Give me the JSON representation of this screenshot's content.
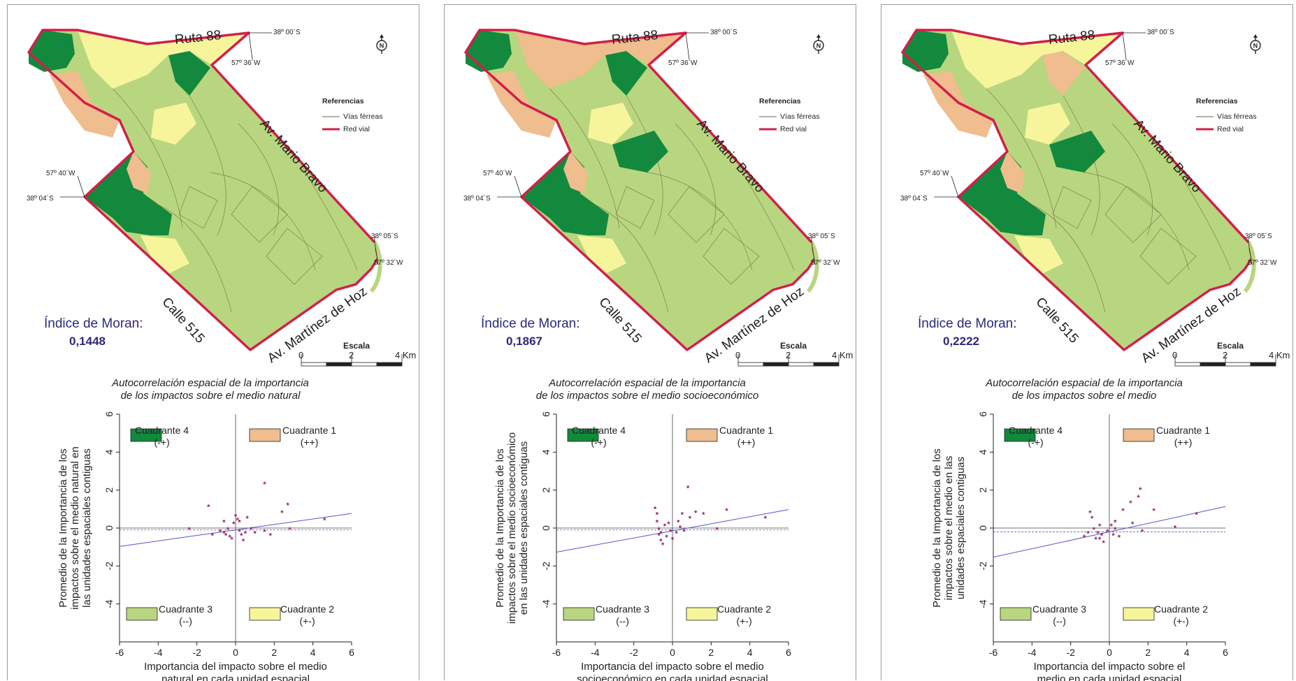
{
  "colors": {
    "q1": "#efbd8e",
    "q2": "#f7f59c",
    "q3": "#b8d67f",
    "q4": "#12893d",
    "boundary": "#d0204a",
    "railway": "#6b6240",
    "moran_text": "#2b2a7a",
    "points": "#8e2060",
    "regression": "#5757c8"
  },
  "common": {
    "refs_title": "Referencias",
    "rail_label": "Vías férreas",
    "road_label": "Red vial",
    "road_ruta": "Ruta 88",
    "road_bravo": "Av. Mario Bravo",
    "road_calle": "Calle 515",
    "road_hoz": "Av. Martínez de Hoz",
    "coord_lat1": "38º 00´S",
    "coord_lon1": "57º 36´W",
    "coord_lon2": "57º 40´W",
    "coord_lat2": "38º 04´S",
    "coord_lat3": "38º 05´S",
    "coord_lon3": "57º 32´W",
    "north_icon": "north-arrow",
    "scale_title": "Escala",
    "scale_0": "0",
    "scale_2": "2",
    "scale_4": "4 Km",
    "moran_label": "Índice de Moran:",
    "q4_name": "Cuadrante 4",
    "q4_sign": "(-+)",
    "q1_name": "Cuadrante 1",
    "q1_sign": "(++)",
    "q3_name": "Cuadrante 3",
    "q3_sign": "(--)",
    "q2_name": "Cuadrante 2",
    "q2_sign": "(+-)"
  },
  "panels": [
    {
      "moran_value": "0,1448",
      "chart_title_1": "Autocorrelación espacial de la importancia",
      "chart_title_2": "de los impactos sobre el medio natural",
      "ylabel_1": "Promedio de la Importancia de los",
      "ylabel_2": "impactos sobre el medio natural en",
      "ylabel_3": "las unidades espaciales contiguas",
      "xlabel_1": "Importancia del impacto sobre el medio",
      "xlabel_2": "natural en cada unidad espacial"
    },
    {
      "moran_value": "0,1867",
      "chart_title_1": "Autocorrelación espacial de la importancia",
      "chart_title_2": "de los impactos sobre el medio socioeconómico",
      "ylabel_1": "Promedio de la Importancia de los",
      "ylabel_2": "impactos sobre el medio socioeconómico",
      "ylabel_3": "en las unidades espaciales contiguas",
      "xlabel_1": "Importancia del impacto sobre el medio",
      "xlabel_2": "socioeconómico en cada unidad espacial"
    },
    {
      "moran_value": "0,2222",
      "chart_title_1": "Autocorrelación espacial de la importancia",
      "chart_title_2": "de los impactos sobre el medio",
      "ylabel_1": "Promedio de la Importancia de los",
      "ylabel_2": "impactos sobre el medio en las",
      "ylabel_3": "unidades espaciales contiguas",
      "xlabel_1": "Importancia del impacto sobre el",
      "xlabel_2": "medio en cada unidad espacial"
    }
  ],
  "chart_data": [
    {
      "type": "scatter",
      "title": "Autocorrelación espacial de la importancia de los impactos sobre el medio natural",
      "xlabel": "Importancia del impacto sobre el medio natural en cada unidad espacial",
      "ylabel": "Promedio de la Importancia de los impactos sobre el medio natural en las unidades espaciales contiguas",
      "xlim": [
        -6,
        6
      ],
      "ylim": [
        -6,
        6
      ],
      "xticks": [
        -6,
        -4,
        -2,
        0,
        2,
        4,
        6
      ],
      "yticks": [
        -4,
        -2,
        0,
        2,
        4,
        6
      ],
      "regression": {
        "slope": 0.1448,
        "intercept": -0.1
      },
      "mean_line_y": -0.1,
      "points": [
        [
          -1.4,
          1.1
        ],
        [
          -1.2,
          -0.4
        ],
        [
          -2.4,
          -0.1
        ],
        [
          -0.8,
          -0.2
        ],
        [
          -0.6,
          -0.3
        ],
        [
          -0.5,
          -0.4
        ],
        [
          -0.4,
          -0.1
        ],
        [
          -0.3,
          -0.5
        ],
        [
          -0.2,
          -0.6
        ],
        [
          -0.1,
          0.2
        ],
        [
          0.0,
          0.6
        ],
        [
          0.1,
          0.4
        ],
        [
          0.2,
          -0.2
        ],
        [
          0.3,
          -0.4
        ],
        [
          0.4,
          -0.7
        ],
        [
          0.5,
          -0.3
        ],
        [
          0.6,
          0.5
        ],
        [
          0.8,
          -0.1
        ],
        [
          1.0,
          -0.3
        ],
        [
          1.5,
          2.3
        ],
        [
          1.5,
          -0.2
        ],
        [
          1.8,
          -0.4
        ],
        [
          2.4,
          0.8
        ],
        [
          2.7,
          1.2
        ],
        [
          2.8,
          -0.1
        ],
        [
          4.6,
          0.4
        ],
        [
          -0.6,
          0.3
        ],
        [
          0.2,
          0.3
        ]
      ]
    },
    {
      "type": "scatter",
      "title": "Autocorrelación espacial de la importancia de los impactos sobre el medio socioeconómico",
      "xlabel": "Importancia del impacto sobre el medio socioeconómico en cada unidad espacial",
      "ylabel": "Promedio de la Importancia de los impactos sobre el medio socioeconómico en las unidades espaciales contiguas",
      "xlim": [
        -6,
        6
      ],
      "ylim": [
        -6,
        6
      ],
      "xticks": [
        -6,
        -4,
        -2,
        0,
        2,
        4,
        6
      ],
      "yticks": [
        -4,
        -2,
        0,
        2,
        4,
        6
      ],
      "regression": {
        "slope": 0.1867,
        "intercept": -0.15
      },
      "mean_line_y": -0.1,
      "points": [
        [
          -0.9,
          1.0
        ],
        [
          -0.8,
          0.7
        ],
        [
          -0.8,
          0.3
        ],
        [
          -0.7,
          -0.1
        ],
        [
          -0.7,
          -0.4
        ],
        [
          -0.6,
          -0.7
        ],
        [
          -0.5,
          -0.9
        ],
        [
          -0.4,
          0.1
        ],
        [
          -0.3,
          -0.5
        ],
        [
          -0.2,
          0.2
        ],
        [
          -0.1,
          -0.2
        ],
        [
          0.0,
          -0.6
        ],
        [
          0.3,
          0.3
        ],
        [
          0.4,
          0.0
        ],
        [
          0.5,
          0.7
        ],
        [
          0.6,
          -0.2
        ],
        [
          0.8,
          2.1
        ],
        [
          0.9,
          0.5
        ],
        [
          1.2,
          0.8
        ],
        [
          1.6,
          0.7
        ],
        [
          2.3,
          -0.1
        ],
        [
          2.8,
          0.9
        ],
        [
          4.8,
          0.5
        ],
        [
          -0.6,
          -0.3
        ],
        [
          0.2,
          -0.3
        ]
      ]
    },
    {
      "type": "scatter",
      "title": "Autocorrelación espacial de la importancia de los impactos sobre el medio",
      "xlabel": "Importancia del impacto sobre el medio en cada unidad espacial",
      "ylabel": "Promedio de la Importancia de los impactos sobre el medio en las unidades espaciales contiguas",
      "xlim": [
        -6,
        6
      ],
      "ylim": [
        -6,
        6
      ],
      "xticks": [
        -6,
        -4,
        -2,
        0,
        2,
        4,
        6
      ],
      "yticks": [
        -4,
        -2,
        0,
        2,
        4,
        6
      ],
      "regression": {
        "slope": 0.2222,
        "intercept": -0.2
      },
      "mean_line_y": -0.2,
      "points": [
        [
          -1.3,
          -0.5
        ],
        [
          -1.1,
          -0.3
        ],
        [
          -1.0,
          0.8
        ],
        [
          -0.9,
          0.5
        ],
        [
          -0.8,
          -0.1
        ],
        [
          -0.7,
          -0.6
        ],
        [
          -0.6,
          -0.3
        ],
        [
          -0.5,
          0.1
        ],
        [
          -0.4,
          -0.4
        ],
        [
          -0.3,
          -0.8
        ],
        [
          -0.1,
          -0.2
        ],
        [
          0.1,
          0.1
        ],
        [
          0.2,
          -0.4
        ],
        [
          0.3,
          -0.1
        ],
        [
          0.5,
          -0.5
        ],
        [
          0.7,
          0.9
        ],
        [
          1.1,
          1.3
        ],
        [
          1.2,
          0.2
        ],
        [
          1.5,
          1.6
        ],
        [
          1.6,
          2.0
        ],
        [
          1.7,
          -0.2
        ],
        [
          2.3,
          0.9
        ],
        [
          3.4,
          0.0
        ],
        [
          4.5,
          0.7
        ],
        [
          -0.5,
          -0.6
        ],
        [
          0.3,
          0.3
        ]
      ]
    }
  ]
}
